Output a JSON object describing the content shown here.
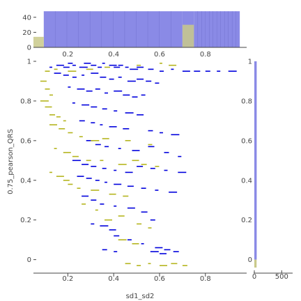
{
  "chart_data": {
    "type": "scatter",
    "title": "",
    "xlabel": "sd1_sd2",
    "ylabel": "0.75_pearson_QRS",
    "xlim": [
      0.05,
      0.98
    ],
    "ylim": [
      -0.04,
      1.0
    ],
    "grid": false,
    "legend": "none",
    "x_ticks": [
      "0.2",
      "0.4",
      "0.6",
      "0.8"
    ],
    "y_ticks": [
      "0",
      "0.2",
      "0.4",
      "0.6",
      "0.8",
      "1"
    ],
    "colors": {
      "series_a": "#0000dd",
      "series_b": "#b5b51e",
      "hist_a": "#8a8ae6",
      "hist_b": "#c9c98a"
    },
    "series": [
      {
        "color_key": "series_a",
        "points": [
          [
            0.12,
            0.97
          ],
          [
            0.15,
            0.98
          ],
          [
            0.18,
            0.97
          ],
          [
            0.2,
            0.99
          ],
          [
            0.22,
            0.98
          ],
          [
            0.25,
            0.97
          ],
          [
            0.27,
            0.99
          ],
          [
            0.3,
            0.98
          ],
          [
            0.33,
            0.97
          ],
          [
            0.35,
            0.99
          ],
          [
            0.38,
            0.98
          ],
          [
            0.4,
            0.97
          ],
          [
            0.42,
            0.98
          ],
          [
            0.45,
            0.97
          ],
          [
            0.47,
            0.96
          ],
          [
            0.5,
            0.97
          ],
          [
            0.55,
            0.96
          ],
          [
            0.6,
            0.95
          ],
          [
            0.65,
            0.96
          ],
          [
            0.7,
            0.95
          ],
          [
            0.75,
            0.95
          ],
          [
            0.8,
            0.95
          ],
          [
            0.85,
            0.95
          ],
          [
            0.9,
            0.95
          ],
          [
            0.14,
            0.94
          ],
          [
            0.18,
            0.93
          ],
          [
            0.22,
            0.92
          ],
          [
            0.26,
            0.93
          ],
          [
            0.3,
            0.94
          ],
          [
            0.34,
            0.92
          ],
          [
            0.38,
            0.91
          ],
          [
            0.42,
            0.92
          ],
          [
            0.46,
            0.9
          ],
          [
            0.5,
            0.91
          ],
          [
            0.54,
            0.9
          ],
          [
            0.58,
            0.89
          ],
          [
            0.2,
            0.87
          ],
          [
            0.24,
            0.86
          ],
          [
            0.28,
            0.85
          ],
          [
            0.32,
            0.86
          ],
          [
            0.36,
            0.84
          ],
          [
            0.4,
            0.85
          ],
          [
            0.44,
            0.83
          ],
          [
            0.48,
            0.82
          ],
          [
            0.52,
            0.83
          ],
          [
            0.22,
            0.79
          ],
          [
            0.26,
            0.78
          ],
          [
            0.3,
            0.77
          ],
          [
            0.35,
            0.76
          ],
          [
            0.4,
            0.75
          ],
          [
            0.45,
            0.74
          ],
          [
            0.5,
            0.73
          ],
          [
            0.25,
            0.7
          ],
          [
            0.3,
            0.69
          ],
          [
            0.34,
            0.68
          ],
          [
            0.38,
            0.67
          ],
          [
            0.44,
            0.66
          ],
          [
            0.55,
            0.65
          ],
          [
            0.6,
            0.64
          ],
          [
            0.65,
            0.63
          ],
          [
            0.28,
            0.6
          ],
          [
            0.32,
            0.58
          ],
          [
            0.36,
            0.57
          ],
          [
            0.42,
            0.56
          ],
          [
            0.48,
            0.55
          ],
          [
            0.55,
            0.57
          ],
          [
            0.62,
            0.54
          ],
          [
            0.68,
            0.52
          ],
          [
            0.22,
            0.5
          ],
          [
            0.26,
            0.48
          ],
          [
            0.3,
            0.47
          ],
          [
            0.35,
            0.46
          ],
          [
            0.4,
            0.45
          ],
          [
            0.45,
            0.44
          ],
          [
            0.5,
            0.47
          ],
          [
            0.56,
            0.46
          ],
          [
            0.62,
            0.45
          ],
          [
            0.68,
            0.44
          ],
          [
            0.24,
            0.42
          ],
          [
            0.28,
            0.41
          ],
          [
            0.32,
            0.4
          ],
          [
            0.36,
            0.39
          ],
          [
            0.4,
            0.38
          ],
          [
            0.46,
            0.37
          ],
          [
            0.52,
            0.36
          ],
          [
            0.58,
            0.35
          ],
          [
            0.64,
            0.34
          ],
          [
            0.26,
            0.32
          ],
          [
            0.3,
            0.3
          ],
          [
            0.34,
            0.28
          ],
          [
            0.4,
            0.27
          ],
          [
            0.46,
            0.26
          ],
          [
            0.52,
            0.24
          ],
          [
            0.56,
            0.2
          ],
          [
            0.3,
            0.18
          ],
          [
            0.34,
            0.17
          ],
          [
            0.38,
            0.15
          ],
          [
            0.4,
            0.12
          ],
          [
            0.46,
            0.1
          ],
          [
            0.52,
            0.08
          ],
          [
            0.58,
            0.06
          ],
          [
            0.62,
            0.05
          ],
          [
            0.35,
            0.05
          ],
          [
            0.4,
            0.04
          ],
          [
            0.56,
            0.04
          ],
          [
            0.6,
            0.03
          ],
          [
            0.66,
            0.04
          ]
        ]
      },
      {
        "color_key": "series_b",
        "points": [
          [
            0.1,
            0.95
          ],
          [
            0.14,
            0.96
          ],
          [
            0.2,
            0.95
          ],
          [
            0.28,
            0.96
          ],
          [
            0.36,
            0.97
          ],
          [
            0.5,
            0.98
          ],
          [
            0.6,
            0.99
          ],
          [
            0.64,
            0.98
          ],
          [
            0.08,
            0.9
          ],
          [
            0.1,
            0.86
          ],
          [
            0.12,
            0.83
          ],
          [
            0.08,
            0.8
          ],
          [
            0.1,
            0.77
          ],
          [
            0.12,
            0.73
          ],
          [
            0.15,
            0.72
          ],
          [
            0.18,
            0.7
          ],
          [
            0.12,
            0.68
          ],
          [
            0.16,
            0.66
          ],
          [
            0.2,
            0.64
          ],
          [
            0.25,
            0.62
          ],
          [
            0.3,
            0.6
          ],
          [
            0.35,
            0.61
          ],
          [
            0.45,
            0.6
          ],
          [
            0.55,
            0.58
          ],
          [
            0.14,
            0.56
          ],
          [
            0.18,
            0.54
          ],
          [
            0.22,
            0.52
          ],
          [
            0.28,
            0.5
          ],
          [
            0.34,
            0.5
          ],
          [
            0.42,
            0.48
          ],
          [
            0.48,
            0.5
          ],
          [
            0.52,
            0.48
          ],
          [
            0.58,
            0.47
          ],
          [
            0.12,
            0.44
          ],
          [
            0.15,
            0.42
          ],
          [
            0.18,
            0.4
          ],
          [
            0.2,
            0.38
          ],
          [
            0.24,
            0.36
          ],
          [
            0.3,
            0.35
          ],
          [
            0.38,
            0.33
          ],
          [
            0.44,
            0.32
          ],
          [
            0.26,
            0.28
          ],
          [
            0.32,
            0.25
          ],
          [
            0.36,
            0.2
          ],
          [
            0.42,
            0.22
          ],
          [
            0.5,
            0.18
          ],
          [
            0.55,
            0.16
          ],
          [
            0.42,
            0.1
          ],
          [
            0.48,
            0.08
          ],
          [
            0.45,
            -0.02
          ],
          [
            0.5,
            -0.03
          ],
          [
            0.55,
            -0.02
          ],
          [
            0.6,
            -0.03
          ],
          [
            0.65,
            -0.02
          ],
          [
            0.7,
            -0.03
          ]
        ]
      }
    ],
    "hist_x": {
      "y_ticks": [
        "0",
        "20",
        "40"
      ],
      "ylim": [
        0,
        50
      ],
      "bins_a": [
        {
          "x0": 0.095,
          "x1": 0.7,
          "value": 48
        },
        {
          "x0": 0.7,
          "x1": 0.75,
          "value": 48
        },
        {
          "x0": 0.75,
          "x1": 0.95,
          "value": 48
        }
      ],
      "bins_b": [
        {
          "x0": 0.05,
          "x1": 0.095,
          "value": 14
        },
        {
          "x0": 0.7,
          "x1": 0.75,
          "value": 30
        }
      ]
    },
    "hist_y": {
      "x_ticks": [
        "0",
        "500"
      ],
      "xlim": [
        0,
        700
      ],
      "bins_a": [
        {
          "y0": 0.0,
          "y1": 1.0,
          "value": 18
        }
      ],
      "bins_b": [
        {
          "y0": -0.04,
          "y1": 0.0,
          "value": 16
        }
      ]
    }
  }
}
